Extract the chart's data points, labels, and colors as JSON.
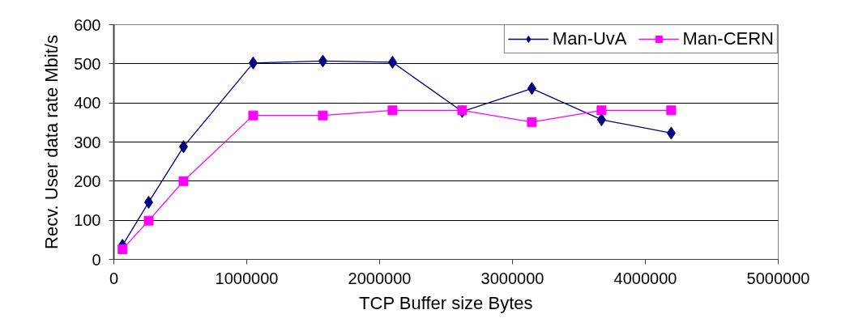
{
  "chart_data": {
    "type": "line",
    "xlabel": "TCP Buffer size Bytes",
    "ylabel": "Recv. User data rate Mbit/s",
    "x": [
      65536,
      262144,
      524288,
      1048576,
      1572864,
      2097152,
      2621440,
      3145728,
      3670016,
      4194304
    ],
    "series": [
      {
        "name": "Man-UvA",
        "color": "#000080",
        "marker": "diamond",
        "values": [
          36,
          146,
          288,
          502,
          507,
          504,
          378,
          437,
          357,
          323
        ]
      },
      {
        "name": "Man-CERN",
        "color": "#ff00ff",
        "marker": "square",
        "values": [
          26,
          99,
          200,
          368,
          368,
          381,
          381,
          351,
          381,
          381
        ]
      }
    ],
    "xlim": [
      0,
      5000000
    ],
    "xticks": [
      0,
      1000000,
      2000000,
      3000000,
      4000000,
      5000000
    ],
    "ylim": [
      0,
      600
    ],
    "yticks": [
      0,
      100,
      200,
      300,
      400,
      500,
      600
    ],
    "grid": "y",
    "legend": "top right"
  }
}
